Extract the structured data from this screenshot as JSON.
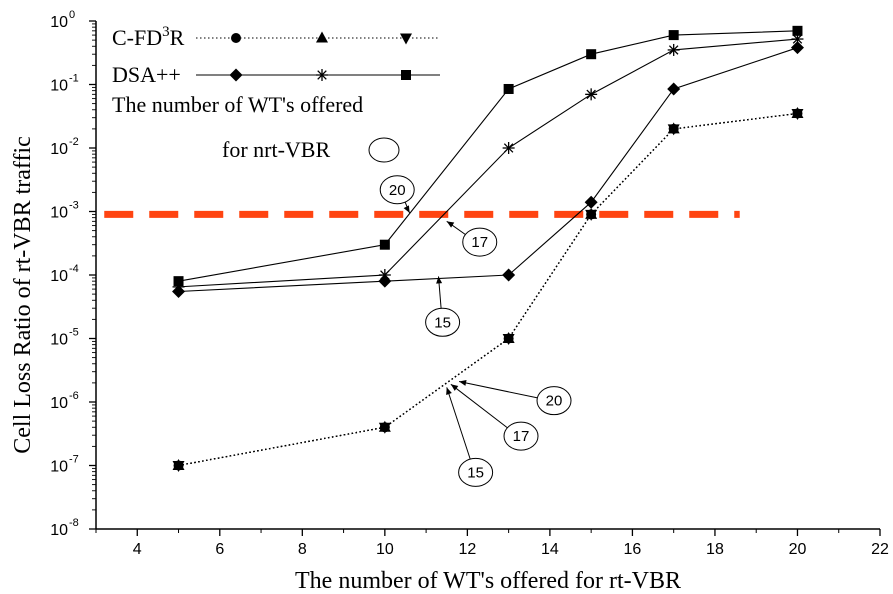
{
  "chart_data": {
    "type": "line",
    "title": "",
    "xlabel": "The number of WT's offered for rt-VBR",
    "ylabel": "Cell Loss Ratio of rt-VBR traffic",
    "x_scale": "linear",
    "y_scale": "log",
    "xlim": [
      3,
      22
    ],
    "ylim": [
      1e-08,
      1
    ],
    "x_ticks": [
      4,
      6,
      8,
      10,
      12,
      14,
      16,
      18,
      20,
      22
    ],
    "x_tick_labels": [
      "4",
      "6",
      "8",
      "10",
      "12",
      "14",
      "16",
      "18",
      "20",
      "22"
    ],
    "y_ticks": [
      1e-08,
      1e-07,
      1e-06,
      1e-05,
      0.0001,
      0.001,
      0.01,
      0.1,
      1
    ],
    "y_tick_labels": [
      {
        "base": "10",
        "exp": "-8"
      },
      {
        "base": "10",
        "exp": "-7"
      },
      {
        "base": "10",
        "exp": "-6"
      },
      {
        "base": "10",
        "exp": "-5"
      },
      {
        "base": "10",
        "exp": "-4"
      },
      {
        "base": "10",
        "exp": "-3"
      },
      {
        "base": "10",
        "exp": "-2"
      },
      {
        "base": "10",
        "exp": "-1"
      },
      {
        "base": "10",
        "exp": "0"
      }
    ],
    "grid": false,
    "legend": {
      "placement": "top-left",
      "groups": [
        {
          "label": "C-FD",
          "sup": "3",
          "suffix": "R",
          "line_style": "dotted",
          "markers": [
            "circle",
            "triangle-up",
            "triangle-down"
          ]
        },
        {
          "label": "DSA++",
          "sup": "",
          "suffix": "",
          "line_style": "solid",
          "markers": [
            "diamond",
            "asterisk",
            "square"
          ]
        }
      ],
      "note_line1": "The number of WT's offered",
      "note_line2": "for nrt-VBR"
    },
    "series": [
      {
        "group": "C-FD3R",
        "nrt": "15",
        "marker": "circle",
        "line_style": "dotted",
        "x": [
          5,
          10,
          13,
          15,
          17,
          20
        ],
        "y": [
          1e-07,
          4e-07,
          1e-05,
          0.0009,
          0.02,
          0.035
        ]
      },
      {
        "group": "C-FD3R",
        "nrt": "17",
        "marker": "triangle-up",
        "line_style": "dotted",
        "x": [
          5,
          10,
          13,
          15,
          17,
          20
        ],
        "y": [
          1e-07,
          4e-07,
          1e-05,
          0.0009,
          0.02,
          0.035
        ]
      },
      {
        "group": "C-FD3R",
        "nrt": "20",
        "marker": "triangle-down",
        "line_style": "dotted",
        "x": [
          5,
          10,
          13,
          15,
          17,
          20
        ],
        "y": [
          1e-07,
          4e-07,
          1e-05,
          0.0009,
          0.02,
          0.035
        ]
      },
      {
        "group": "DSA++",
        "nrt": "15",
        "marker": "diamond",
        "line_style": "solid",
        "x": [
          5,
          10,
          13,
          15,
          17,
          20
        ],
        "y": [
          5.5e-05,
          8e-05,
          0.0001,
          0.0014,
          0.085,
          0.38
        ]
      },
      {
        "group": "DSA++",
        "nrt": "17",
        "marker": "asterisk",
        "line_style": "solid",
        "x": [
          5,
          10,
          13,
          15,
          17,
          20
        ],
        "y": [
          6.5e-05,
          0.0001,
          0.01,
          0.07,
          0.35,
          0.52
        ]
      },
      {
        "group": "DSA++",
        "nrt": "20",
        "marker": "square",
        "line_style": "solid",
        "x": [
          5,
          10,
          13,
          15,
          17,
          20
        ],
        "y": [
          8e-05,
          0.0003,
          0.085,
          0.3,
          0.6,
          0.7
        ]
      }
    ],
    "threshold": {
      "y": 0.0009,
      "x_start": 3.2,
      "x_end": 18.6,
      "color": "#ff4411",
      "style": "dashed"
    },
    "callouts": [
      {
        "text": "20",
        "cx": 10.3,
        "cy": 0.0022,
        "ax": 10.6,
        "ay": 0.00095
      },
      {
        "text": "17",
        "cx": 12.3,
        "cy": 0.00033,
        "ax": 11.5,
        "ay": 0.0007
      },
      {
        "text": "15",
        "cx": 11.4,
        "cy": 1.8e-05,
        "ax": 11.3,
        "ay": 9.5e-05
      },
      {
        "text": "20",
        "cx": 14.1,
        "cy": 1.05e-06,
        "ax": 11.8,
        "ay": 2.1e-06
      },
      {
        "text": "17",
        "cx": 13.3,
        "cy": 2.9e-07,
        "ax": 11.6,
        "ay": 1.9e-06
      },
      {
        "text": "15",
        "cx": 12.2,
        "cy": 7.8e-08,
        "ax": 11.5,
        "ay": 1.7e-06
      }
    ],
    "colors": {
      "axis": "#000000",
      "series": "#000000",
      "threshold": "#ff4411"
    }
  }
}
